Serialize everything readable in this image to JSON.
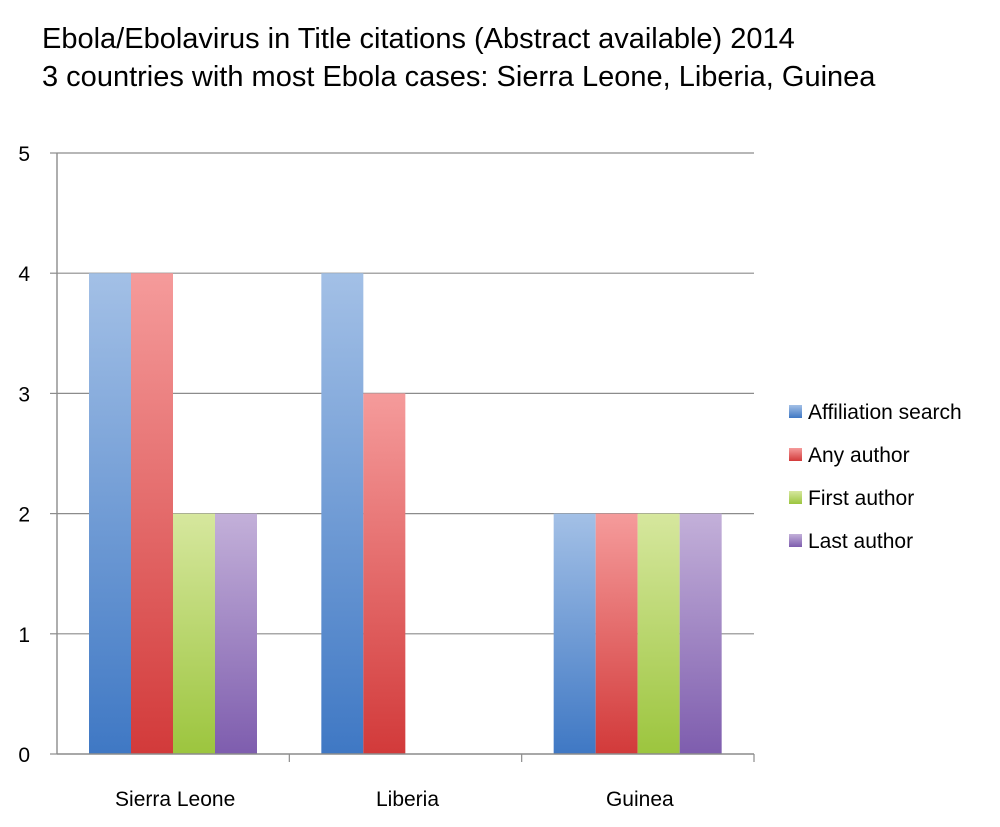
{
  "chart_data": {
    "type": "bar",
    "title": "Ebola/Ebolavirus in Title citations (Abstract available) 2014",
    "subtitle": "3 countries with most Ebola cases: Sierra Leone, Liberia, Guinea",
    "xlabel": "",
    "ylabel": "",
    "categories": [
      "Sierra Leone",
      "Liberia",
      "Guinea"
    ],
    "ylim": [
      0,
      5
    ],
    "yticks": [
      0,
      1,
      2,
      3,
      4,
      5
    ],
    "grid": true,
    "legend_position": "right",
    "series": [
      {
        "name": "Affiliation search",
        "values": [
          4,
          4,
          2
        ],
        "color": "#5A8ED0",
        "color_light": "#A3C0E6",
        "color_dark": "#3F78C4"
      },
      {
        "name": "Any author",
        "values": [
          4,
          3,
          2
        ],
        "color": "#E05A5A",
        "color_light": "#F59B9B",
        "color_dark": "#D23A3A"
      },
      {
        "name": "First author",
        "values": [
          2,
          0,
          2
        ],
        "color": "#B9D86A",
        "color_light": "#D6E79E",
        "color_dark": "#9CC53E"
      },
      {
        "name": "Last author",
        "values": [
          2,
          0,
          2
        ],
        "color": "#9B7DBE",
        "color_light": "#C3B0D9",
        "color_dark": "#7E5DAE"
      }
    ]
  }
}
